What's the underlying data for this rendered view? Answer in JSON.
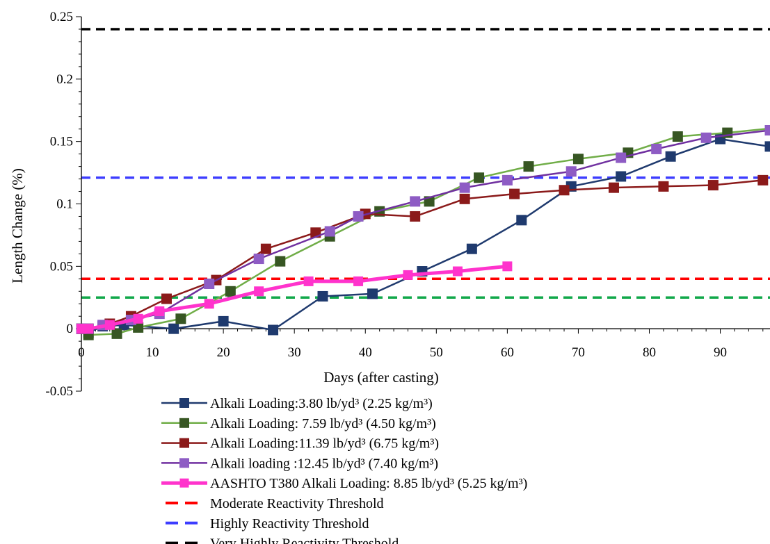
{
  "chart_data": {
    "type": "line",
    "xlabel": "Days (after casting)",
    "ylabel": "Length Change (%)",
    "xlim": [
      0,
      97
    ],
    "ylim": [
      -0.05,
      0.25
    ],
    "x_ticks": [
      0,
      10,
      20,
      30,
      40,
      50,
      60,
      70,
      80,
      90
    ],
    "y_ticks": [
      -0.05,
      0,
      0.05,
      0.1,
      0.15,
      0.2,
      0.25
    ],
    "x_tick_labels": [
      "0",
      "10",
      "20",
      "30",
      "40",
      "50",
      "60",
      "70",
      "80",
      "90"
    ],
    "y_tick_labels": [
      "-0.05",
      "0",
      "0.05",
      "0.1",
      "0.15",
      "0.2",
      "0.25"
    ],
    "grid": false,
    "legend_position": "bottom",
    "series": [
      {
        "name": "Alkali Loading:3.80 lb/yd³ (2.25 kg/m³)",
        "color": "#1f3a6e",
        "line_width": 2.5,
        "x": [
          0,
          1,
          3,
          6,
          13,
          20,
          27,
          34,
          41,
          48,
          55,
          62,
          69,
          76,
          83,
          90,
          97
        ],
        "y": [
          0,
          -0.003,
          0.002,
          0.003,
          0,
          0.006,
          -0.001,
          0.026,
          0.028,
          0.046,
          0.064,
          0.087,
          0.114,
          0.122,
          0.138,
          0.152,
          0.146
        ]
      },
      {
        "name": "Alkali Loading: 7.59 lb/yd³ (4.50 kg/m³)",
        "color": "#70ad47",
        "marker_color": "#375623",
        "line_width": 2.5,
        "x": [
          0,
          1,
          5,
          8,
          14,
          21,
          28,
          35,
          42,
          49,
          56,
          63,
          70,
          77,
          84,
          91,
          98
        ],
        "y": [
          0,
          -0.005,
          -0.004,
          0.001,
          0.008,
          0.03,
          0.054,
          0.074,
          0.094,
          0.102,
          0.121,
          0.13,
          0.136,
          0.141,
          0.154,
          0.157,
          0.161
        ]
      },
      {
        "name": "Alkali Loading:11.39 lb/yd³ (6.75 kg/m³)",
        "color": "#8b1a1a",
        "line_width": 2.5,
        "x": [
          0,
          1,
          4,
          7,
          12,
          19,
          26,
          33,
          40,
          47,
          54,
          61,
          68,
          75,
          82,
          89,
          96
        ],
        "y": [
          0,
          0,
          0.004,
          0.01,
          0.024,
          0.039,
          0.064,
          0.077,
          0.092,
          0.09,
          0.104,
          0.108,
          0.111,
          0.113,
          0.114,
          0.115,
          0.119
        ]
      },
      {
        "name": "Alkali loading :12.45 lb/yd³ (7.40 kg/m³)",
        "color": "#7030a0",
        "marker_color": "#8e5cc4",
        "line_width": 2.5,
        "x": [
          0,
          1,
          3,
          7,
          11,
          18,
          25,
          35,
          39,
          47,
          54,
          60,
          69,
          76,
          81,
          88,
          97
        ],
        "y": [
          0,
          0,
          0.003,
          0.007,
          0.012,
          0.036,
          0.056,
          0.078,
          0.09,
          0.102,
          0.113,
          0.119,
          0.126,
          0.137,
          0.144,
          0.153,
          0.159
        ]
      },
      {
        "name": "AASHTO T380  Alkali Loading: 8.85 lb/yd³ (5.25 kg/m³)",
        "color": "#ff33cc",
        "line_width": 5,
        "x": [
          0,
          1,
          4,
          8,
          11,
          18,
          25,
          32,
          39,
          46,
          53,
          60
        ],
        "y": [
          0,
          0,
          0.003,
          0.008,
          0.014,
          0.02,
          0.03,
          0.038,
          0.038,
          0.043,
          0.046,
          0.05
        ]
      }
    ],
    "thresholds": [
      {
        "name": "Moderate Reactivity Threshold",
        "value": 0.04,
        "color": "#ff0000",
        "style": "dashed",
        "in_legend": true
      },
      {
        "name": "Highly Reactivity Threshold",
        "value": 0.121,
        "color": "#3d3dff",
        "style": "dashed",
        "in_legend": true
      },
      {
        "name": "Very Highly Reactivity Threshold",
        "value": 0.24,
        "color": "#000000",
        "style": "dashed",
        "in_legend": true
      },
      {
        "name": "",
        "value": 0.025,
        "color": "#11a84a",
        "style": "dashed",
        "in_legend": false
      }
    ]
  }
}
